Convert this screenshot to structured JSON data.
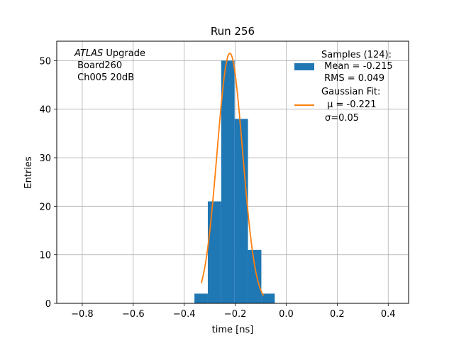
{
  "chart_data": {
    "type": "bar",
    "title": "Run 256",
    "xlabel": "time [ns]",
    "ylabel": "Entries",
    "xlim": [
      -0.9,
      0.48
    ],
    "ylim": [
      0,
      54
    ],
    "xticks": [
      -0.8,
      -0.6,
      -0.4,
      -0.2,
      0.0,
      0.2,
      0.4
    ],
    "xtick_labels": [
      "−0.8",
      "−0.6",
      "−0.4",
      "−0.2",
      "0.0",
      "0.2",
      "0.4"
    ],
    "yticks": [
      0,
      10,
      20,
      30,
      40,
      50
    ],
    "ytick_labels": [
      "0",
      "10",
      "20",
      "30",
      "40",
      "50"
    ],
    "grid": true,
    "bin_edges": [
      -0.36,
      -0.3075,
      -0.255,
      -0.2025,
      -0.15,
      -0.0975,
      -0.045
    ],
    "bin_counts": [
      2,
      21,
      50,
      38,
      11,
      2
    ],
    "fit": {
      "mu": -0.221,
      "sigma": 0.05,
      "amplitude": 51.5,
      "x_range": [
        -0.333,
        -0.089
      ]
    },
    "annotation": {
      "italic": "ATLAS",
      "first_rest": " Upgrade",
      "lines": [
        " Board260",
        " Ch005 20dB"
      ]
    },
    "legend": {
      "position": "upper right",
      "entries": [
        {
          "kind": "patch",
          "color": "#1f77b4",
          "lines": [
            "Samples (124):",
            " Mean = -0.215",
            " RMS = 0.049"
          ]
        },
        {
          "kind": "line",
          "color": "#ff7f0e",
          "lines": [
            "Gaussian Fit:",
            " μ = -0.221",
            "σ=0.05"
          ]
        }
      ]
    },
    "colors": {
      "bars": "#1f77b4",
      "fit": "#ff7f0e",
      "grid": "#b0b0b0"
    }
  }
}
